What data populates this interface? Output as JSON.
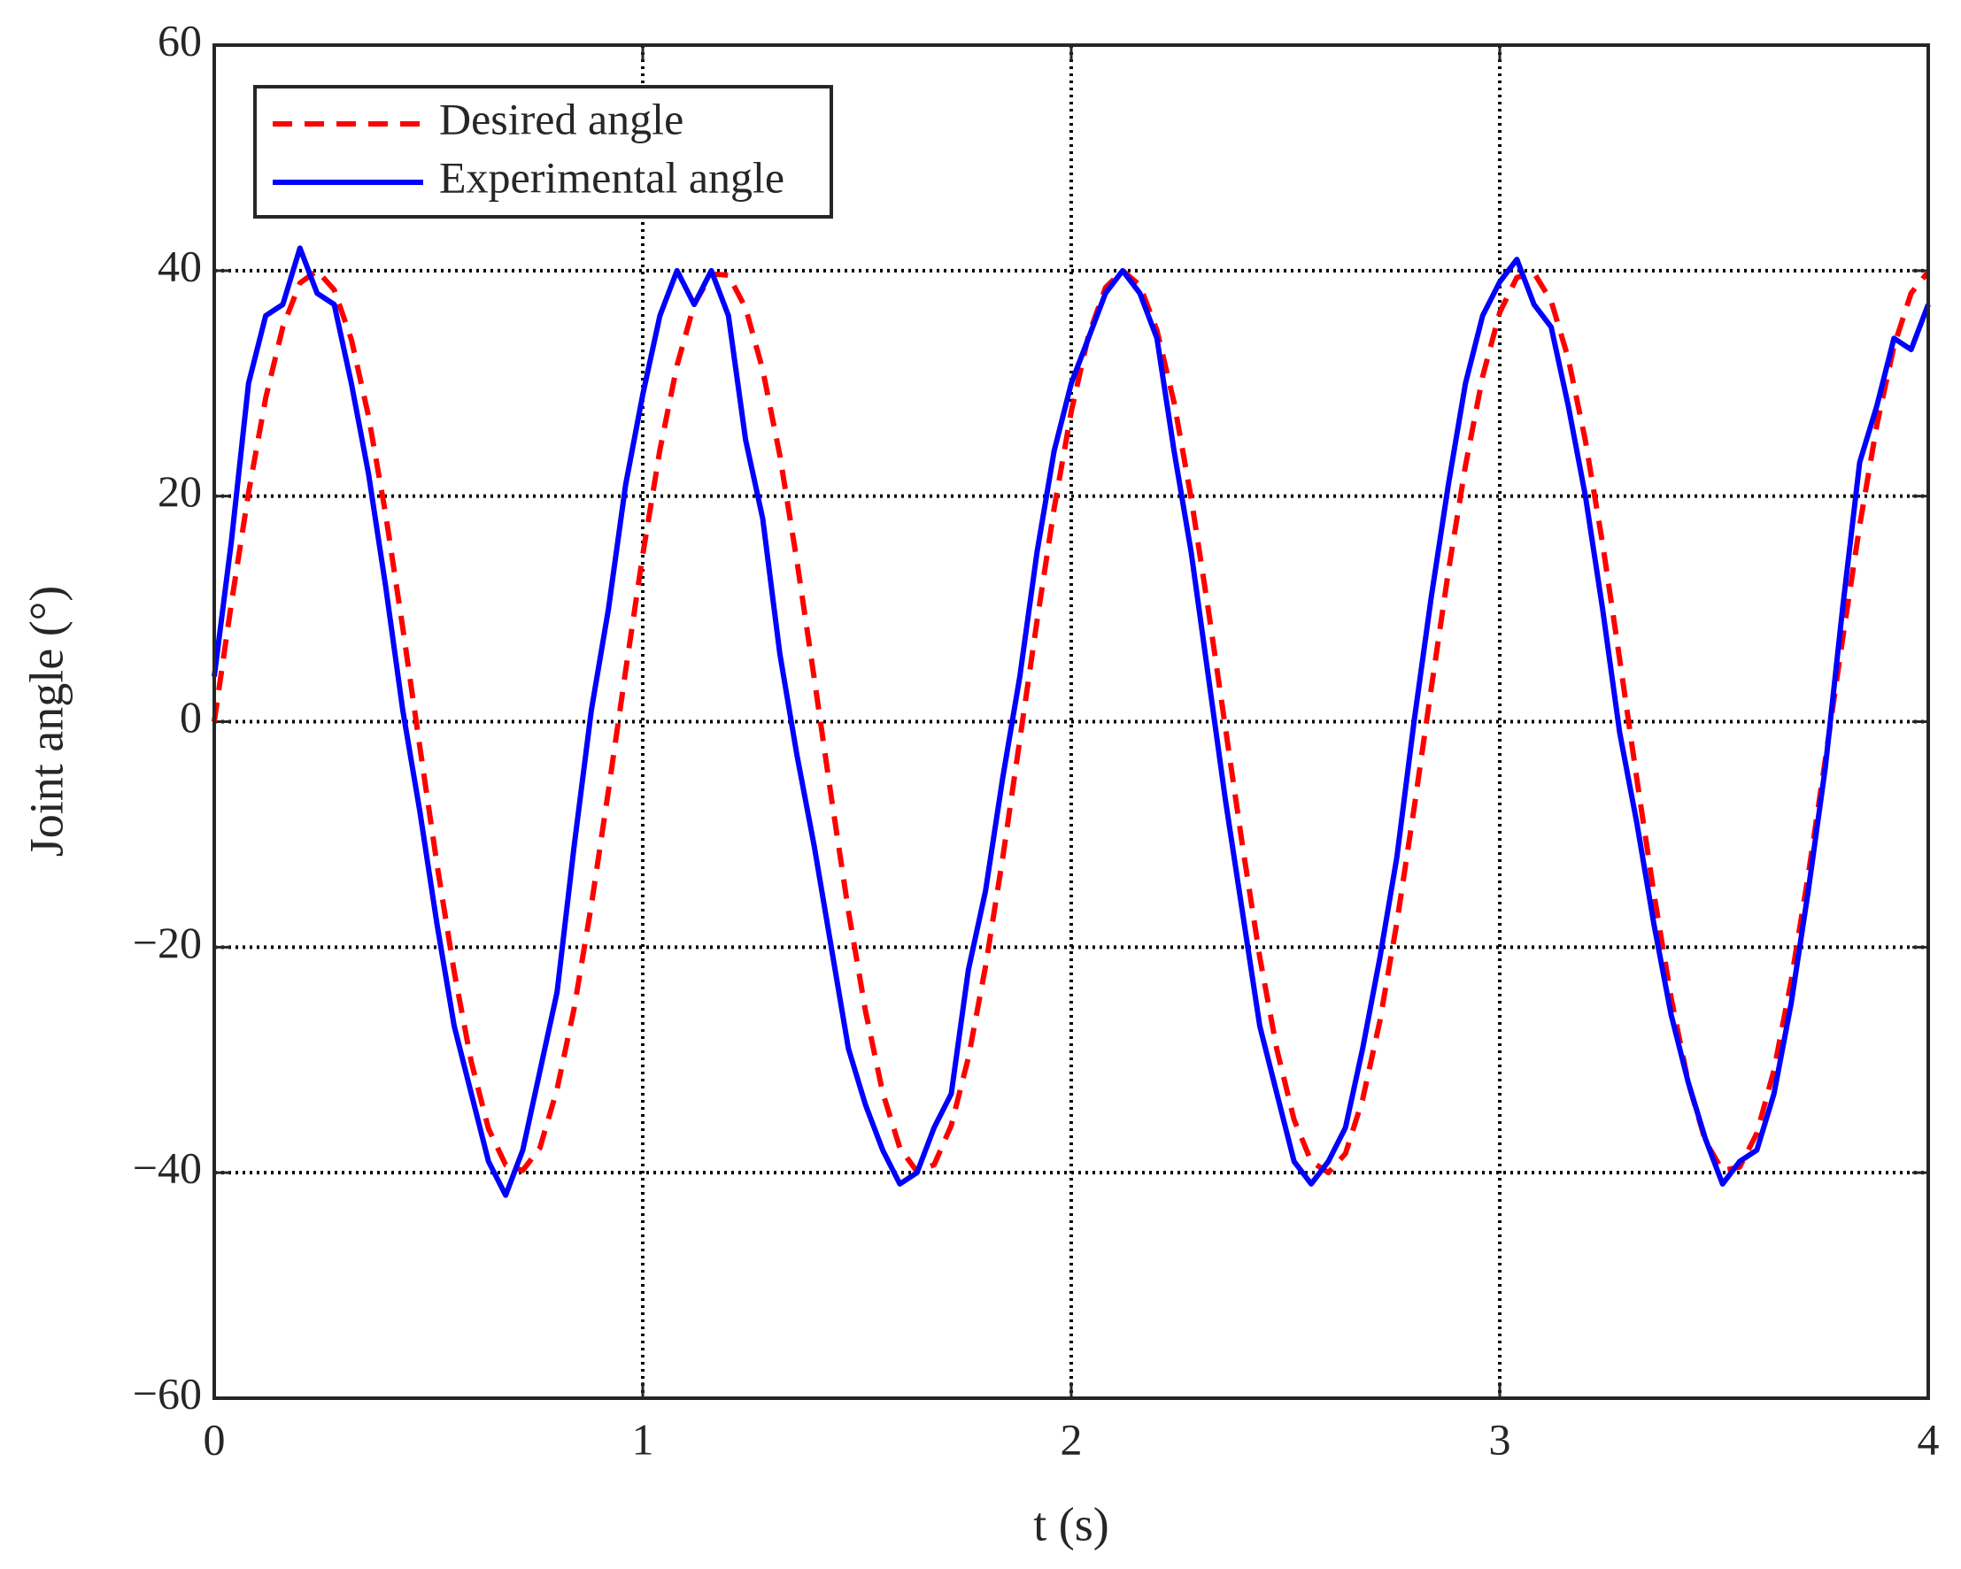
{
  "chart_data": {
    "type": "line",
    "xlabel": "t (s)",
    "ylabel": "Joint angle (°)",
    "xlim": [
      0,
      4
    ],
    "xticks": [
      0,
      1,
      2,
      3,
      4
    ],
    "ylim": [
      -60,
      60
    ],
    "yticks": [
      {
        "value": -60,
        "label": "−60"
      },
      {
        "value": -40,
        "label": "−40"
      },
      {
        "value": -20,
        "label": "−20"
      },
      0,
      20,
      40,
      60
    ],
    "grid": true,
    "legend": "upper left",
    "x": [
      0,
      0.04,
      0.08,
      0.12,
      0.16,
      0.2,
      0.24,
      0.28,
      0.32,
      0.36,
      0.4,
      0.44,
      0.48,
      0.52,
      0.56,
      0.6,
      0.64,
      0.68,
      0.72,
      0.76,
      0.8,
      0.84,
      0.88,
      0.92,
      0.96,
      1,
      1.04,
      1.08,
      1.12,
      1.16,
      1.2,
      1.24,
      1.28,
      1.32,
      1.36,
      1.4,
      1.44,
      1.48,
      1.52,
      1.56,
      1.6,
      1.64,
      1.68,
      1.72,
      1.76,
      1.8,
      1.84,
      1.88,
      1.92,
      1.96,
      2,
      2.04,
      2.08,
      2.12,
      2.16,
      2.2,
      2.24,
      2.28,
      2.32,
      2.36,
      2.4,
      2.44,
      2.48,
      2.52,
      2.56,
      2.6,
      2.64,
      2.68,
      2.72,
      2.76,
      2.8,
      2.84,
      2.88,
      2.92,
      2.96,
      3,
      3.04,
      3.08,
      3.12,
      3.16,
      3.2,
      3.24,
      3.28,
      3.32,
      3.36,
      3.4,
      3.44,
      3.48,
      3.52,
      3.56,
      3.6,
      3.64,
      3.68,
      3.72,
      3.76,
      3.8,
      3.84,
      3.88,
      3.92,
      3.96,
      4
    ],
    "series": [
      {
        "name": "Desired angle",
        "color": "#ff0000",
        "linestyle": "dashed",
        "values": [
          0,
          10.5,
          20.3,
          28.7,
          35.0,
          38.9,
          40.0,
          38.3,
          33.9,
          27.1,
          18.4,
          8.3,
          -2.3,
          -12.7,
          -22.2,
          -30.2,
          -36.1,
          -39.3,
          -39.8,
          -37.8,
          -32.6,
          -25.4,
          -16.3,
          -6.1,
          4.5,
          14.8,
          24.1,
          31.6,
          37.0,
          39.7,
          39.6,
          36.7,
          31.2,
          23.6,
          14.2,
          3.9,
          -6.7,
          -16.8,
          -25.7,
          -32.9,
          -37.8,
          -39.9,
          -39.3,
          -35.8,
          -29.8,
          -21.7,
          -12.1,
          -1.6,
          8.9,
          18.9,
          27.5,
          34.2,
          38.5,
          40.0,
          38.7,
          34.7,
          28.3,
          19.8,
          9.9,
          -0.6,
          -11.1,
          -20.9,
          -29.1,
          -35.3,
          -39.0,
          -40.0,
          -38.3,
          -33.5,
          -26.6,
          -17.8,
          -7.7,
          2.9,
          13.3,
          22.7,
          30.6,
          36.3,
          39.4,
          39.8,
          37.3,
          32.2,
          24.9,
          15.8,
          5.5,
          -5.1,
          -15.3,
          -24.5,
          -32.0,
          -37.2,
          -39.8,
          -39.5,
          -36.5,
          -30.9,
          -23.0,
          -13.6,
          -3.3,
          7.3,
          17.4,
          26.3,
          33.3,
          38.0,
          39.9
        ]
      },
      {
        "name": "Experimental angle",
        "color": "#0000ff",
        "linestyle": "solid",
        "values": [
          4,
          16,
          30,
          36,
          37,
          42,
          38,
          37,
          30,
          22,
          12,
          1,
          -8,
          -18,
          -27,
          -33,
          -39,
          -42,
          -38,
          -31,
          -24,
          -11,
          1,
          10,
          21,
          29,
          36,
          40,
          37,
          40,
          36,
          25,
          18,
          6,
          -3,
          -11,
          -20,
          -29,
          -34,
          -38,
          -41,
          -40,
          -36,
          -33,
          -22,
          -15,
          -5,
          4,
          15,
          24,
          30,
          34,
          38,
          40,
          38,
          34,
          24,
          15,
          4,
          -7,
          -17,
          -27,
          -33,
          -39,
          -41,
          -39,
          -36,
          -29,
          -21,
          -12,
          0,
          11,
          21,
          30,
          36,
          39,
          41,
          37,
          35,
          28,
          20,
          10,
          -1,
          -9,
          -18,
          -26,
          -32,
          -37,
          -41,
          -39,
          -38,
          -33,
          -25,
          -15,
          -4,
          10,
          23,
          28,
          34,
          33,
          37
        ]
      }
    ]
  }
}
